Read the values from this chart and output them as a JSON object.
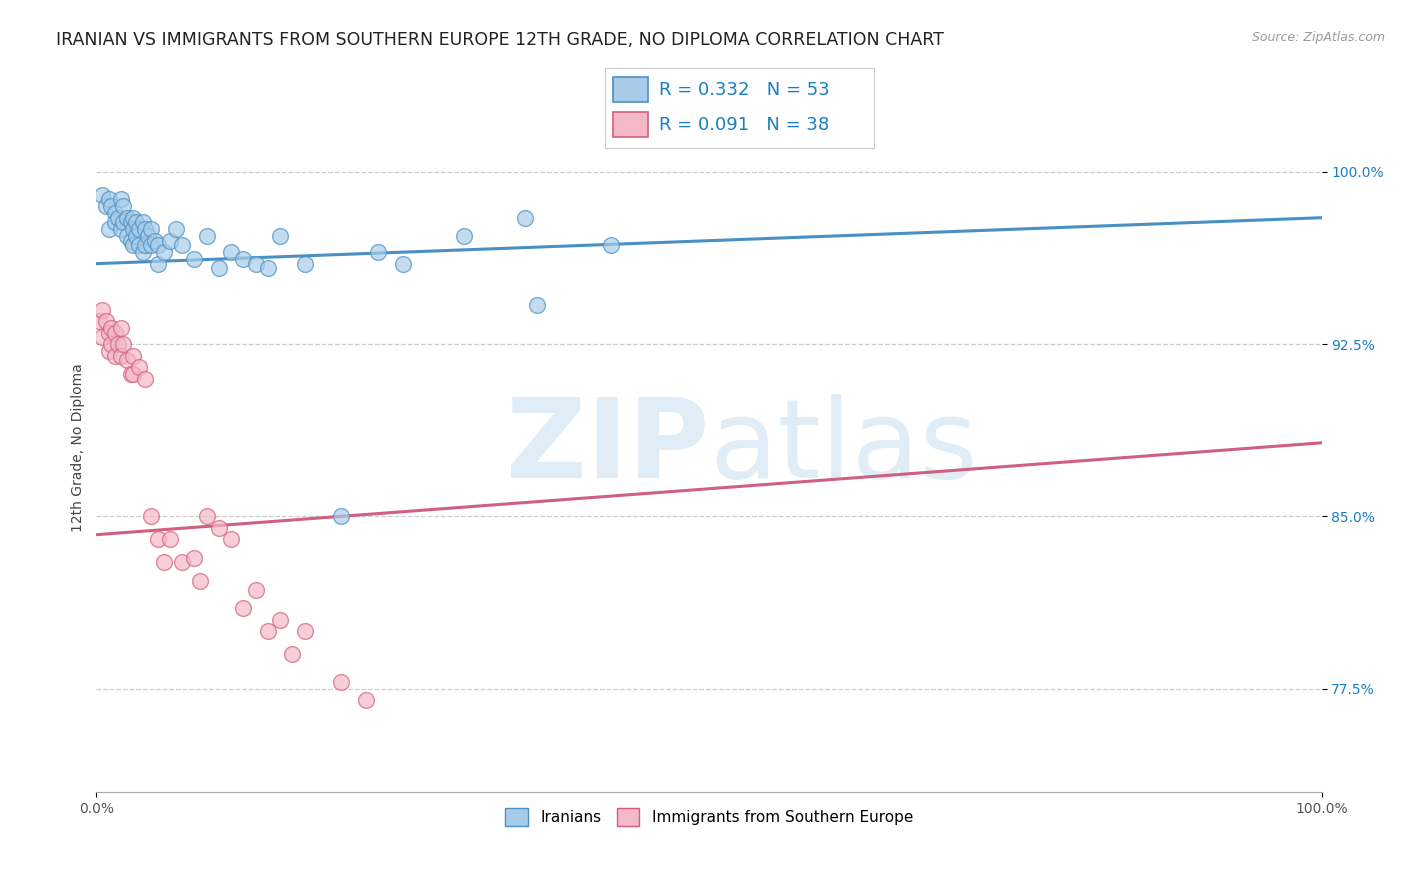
{
  "title": "IRANIAN VS IMMIGRANTS FROM SOUTHERN EUROPE 12TH GRADE, NO DIPLOMA CORRELATION CHART",
  "source": "Source: ZipAtlas.com",
  "ylabel": "12th Grade, No Diploma",
  "ytick_labels": [
    "77.5%",
    "85.0%",
    "92.5%",
    "100.0%"
  ],
  "ytick_values": [
    0.775,
    0.85,
    0.925,
    1.0
  ],
  "xmin": 0.0,
  "xmax": 1.0,
  "ymin": 0.73,
  "ymax": 1.03,
  "blue_R": 0.332,
  "blue_N": 53,
  "pink_R": 0.091,
  "pink_N": 38,
  "blue_color": "#a8cce8",
  "blue_edge_color": "#4a90c4",
  "pink_color": "#f4b8c8",
  "pink_edge_color": "#d06080",
  "legend_color": "#1a7fc1",
  "blue_dots_x": [
    0.005,
    0.008,
    0.01,
    0.01,
    0.012,
    0.015,
    0.015,
    0.018,
    0.02,
    0.02,
    0.022,
    0.022,
    0.025,
    0.025,
    0.028,
    0.028,
    0.03,
    0.03,
    0.03,
    0.032,
    0.032,
    0.035,
    0.035,
    0.038,
    0.038,
    0.04,
    0.04,
    0.042,
    0.045,
    0.045,
    0.048,
    0.05,
    0.05,
    0.055,
    0.06,
    0.065,
    0.07,
    0.08,
    0.09,
    0.1,
    0.11,
    0.12,
    0.13,
    0.14,
    0.15,
    0.17,
    0.2,
    0.23,
    0.25,
    0.3,
    0.35,
    0.36,
    0.42
  ],
  "blue_dots_y": [
    0.99,
    0.985,
    0.988,
    0.975,
    0.985,
    0.982,
    0.978,
    0.98,
    0.988,
    0.975,
    0.985,
    0.978,
    0.98,
    0.972,
    0.978,
    0.97,
    0.98,
    0.975,
    0.968,
    0.978,
    0.972,
    0.975,
    0.968,
    0.978,
    0.965,
    0.975,
    0.968,
    0.972,
    0.975,
    0.968,
    0.97,
    0.968,
    0.96,
    0.965,
    0.97,
    0.975,
    0.968,
    0.962,
    0.972,
    0.958,
    0.965,
    0.962,
    0.96,
    0.958,
    0.972,
    0.96,
    0.85,
    0.965,
    0.96,
    0.972,
    0.98,
    0.942,
    0.968
  ],
  "pink_dots_x": [
    0.002,
    0.005,
    0.005,
    0.008,
    0.01,
    0.01,
    0.012,
    0.012,
    0.015,
    0.015,
    0.018,
    0.02,
    0.02,
    0.022,
    0.025,
    0.028,
    0.03,
    0.03,
    0.035,
    0.04,
    0.045,
    0.05,
    0.055,
    0.06,
    0.07,
    0.08,
    0.085,
    0.09,
    0.1,
    0.11,
    0.12,
    0.13,
    0.14,
    0.15,
    0.16,
    0.17,
    0.2,
    0.22
  ],
  "pink_dots_y": [
    0.935,
    0.94,
    0.928,
    0.935,
    0.93,
    0.922,
    0.932,
    0.925,
    0.93,
    0.92,
    0.925,
    0.932,
    0.92,
    0.925,
    0.918,
    0.912,
    0.92,
    0.912,
    0.915,
    0.91,
    0.85,
    0.84,
    0.83,
    0.84,
    0.83,
    0.832,
    0.822,
    0.85,
    0.845,
    0.84,
    0.81,
    0.818,
    0.8,
    0.805,
    0.79,
    0.8,
    0.778,
    0.77
  ],
  "blue_line_x0": 0.0,
  "blue_line_x1": 1.0,
  "blue_line_y0": 0.96,
  "blue_line_y1": 0.98,
  "pink_line_x0": 0.0,
  "pink_line_x1": 1.0,
  "pink_line_y0": 0.842,
  "pink_line_y1": 0.882,
  "watermark_zip": "ZIP",
  "watermark_atlas": "atlas",
  "grid_color": "#cccccc",
  "bg_color": "#ffffff",
  "title_fontsize": 12.5,
  "source_fontsize": 9,
  "axis_label_fontsize": 10,
  "tick_fontsize": 10,
  "legend_fontsize": 13
}
